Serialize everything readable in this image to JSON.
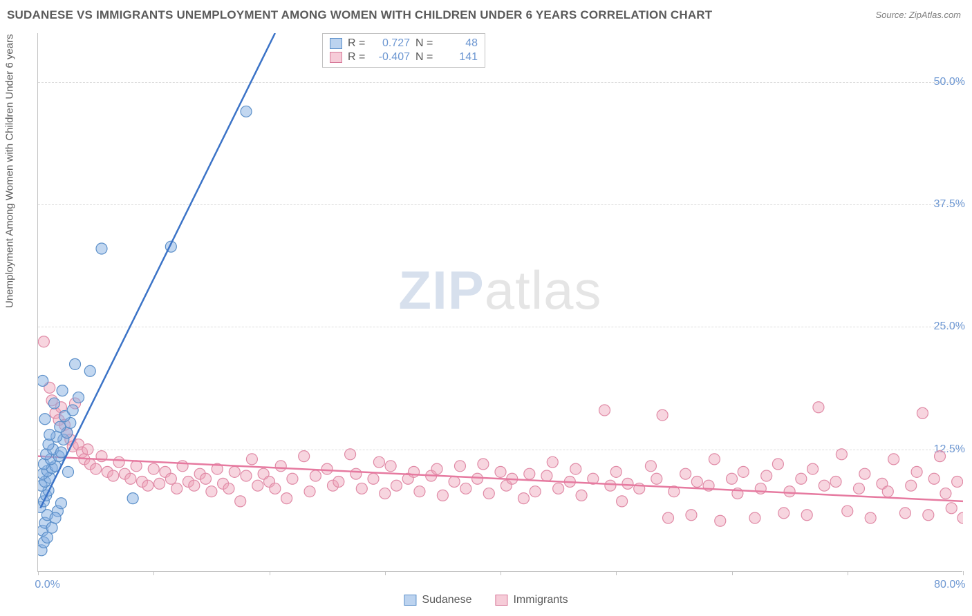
{
  "title": "SUDANESE VS IMMIGRANTS UNEMPLOYMENT AMONG WOMEN WITH CHILDREN UNDER 6 YEARS CORRELATION CHART",
  "source": "Source: ZipAtlas.com",
  "ylabel": "Unemployment Among Women with Children Under 6 years",
  "watermark_zip": "ZIP",
  "watermark_atlas": "atlas",
  "chart": {
    "type": "scatter",
    "background_color": "#ffffff",
    "grid_color": "#dcdcdc",
    "axis_color": "#c2c2c2",
    "text_color": "#5a5a5a",
    "tick_label_color": "#6d97d2",
    "title_fontsize": 17,
    "label_fontsize": 15,
    "tick_fontsize": 16,
    "xlim": [
      0,
      80
    ],
    "ylim": [
      0,
      55
    ],
    "yticks": [
      12.5,
      25.0,
      37.5,
      50.0
    ],
    "ytick_labels": [
      "12.5%",
      "25.0%",
      "37.5%",
      "50.0%"
    ],
    "xtick_spacing": 10,
    "xtick_labels_shown": {
      "0": "0.0%",
      "80": "80.0%"
    },
    "marker_radius": 8,
    "trend_line_width": 2.5
  },
  "legend_top": {
    "rows": [
      {
        "swatch": "blue",
        "r_label": "R =",
        "r_value": "0.727",
        "n_label": "N =",
        "n_value": "48"
      },
      {
        "swatch": "pink",
        "r_label": "R =",
        "r_value": "-0.407",
        "n_label": "N =",
        "n_value": "141"
      }
    ]
  },
  "legend_bottom": {
    "items": [
      {
        "swatch": "blue",
        "label": "Sudanese"
      },
      {
        "swatch": "pink",
        "label": "Immigrants"
      }
    ]
  },
  "series_blue": {
    "name": "Sudanese",
    "color_fill": "rgba(133,175,226,0.5)",
    "color_stroke": "#5b8fc9",
    "trend_color": "#3b73c7",
    "trend": {
      "x1": 0.2,
      "y1": 6.5,
      "x2": 20.5,
      "y2": 55
    },
    "points": [
      [
        0.3,
        2.2
      ],
      [
        0.5,
        3.0
      ],
      [
        0.4,
        4.2
      ],
      [
        0.6,
        5.0
      ],
      [
        0.8,
        5.8
      ],
      [
        0.2,
        6.6
      ],
      [
        0.5,
        7.2
      ],
      [
        0.7,
        7.8
      ],
      [
        0.9,
        8.3
      ],
      [
        0.3,
        8.8
      ],
      [
        0.6,
        9.2
      ],
      [
        1.0,
        9.6
      ],
      [
        0.4,
        10.0
      ],
      [
        0.8,
        10.3
      ],
      [
        1.2,
        10.6
      ],
      [
        0.5,
        11.0
      ],
      [
        1.5,
        10.8
      ],
      [
        1.1,
        11.5
      ],
      [
        0.7,
        12.0
      ],
      [
        1.8,
        11.8
      ],
      [
        1.3,
        12.5
      ],
      [
        2.0,
        12.2
      ],
      [
        0.9,
        13.0
      ],
      [
        2.2,
        13.5
      ],
      [
        1.6,
        13.8
      ],
      [
        2.5,
        14.2
      ],
      [
        1.9,
        14.8
      ],
      [
        2.8,
        15.2
      ],
      [
        0.6,
        15.6
      ],
      [
        2.3,
        15.9
      ],
      [
        3.0,
        16.5
      ],
      [
        1.4,
        17.2
      ],
      [
        3.5,
        17.8
      ],
      [
        2.1,
        18.5
      ],
      [
        0.4,
        19.5
      ],
      [
        4.5,
        20.5
      ],
      [
        3.2,
        21.2
      ],
      [
        1.0,
        14.0
      ],
      [
        2.6,
        10.2
      ],
      [
        5.5,
        33.0
      ],
      [
        11.5,
        33.2
      ],
      [
        8.2,
        7.5
      ],
      [
        18.0,
        47.0
      ],
      [
        1.2,
        4.5
      ],
      [
        1.7,
        6.2
      ],
      [
        0.8,
        3.5
      ],
      [
        1.5,
        5.5
      ],
      [
        2.0,
        7.0
      ]
    ]
  },
  "series_pink": {
    "name": "Immigrants",
    "color_fill": "rgba(238,162,184,0.45)",
    "color_stroke": "#e08aa6",
    "trend_color": "#e67aa0",
    "trend": {
      "x1": 0,
      "y1": 11.8,
      "x2": 80,
      "y2": 7.2
    },
    "points": [
      [
        0.5,
        23.5
      ],
      [
        1.0,
        18.8
      ],
      [
        1.2,
        17.5
      ],
      [
        1.5,
        16.2
      ],
      [
        1.8,
        15.5
      ],
      [
        2.0,
        16.8
      ],
      [
        2.3,
        15.0
      ],
      [
        2.5,
        14.2
      ],
      [
        2.8,
        13.5
      ],
      [
        3.0,
        12.8
      ],
      [
        3.2,
        17.2
      ],
      [
        3.5,
        13.0
      ],
      [
        3.8,
        12.2
      ],
      [
        4.0,
        11.5
      ],
      [
        4.3,
        12.5
      ],
      [
        4.5,
        11.0
      ],
      [
        5.0,
        10.5
      ],
      [
        5.5,
        11.8
      ],
      [
        6.0,
        10.2
      ],
      [
        6.5,
        9.8
      ],
      [
        7.0,
        11.2
      ],
      [
        7.5,
        10.0
      ],
      [
        8.0,
        9.5
      ],
      [
        8.5,
        10.8
      ],
      [
        9.0,
        9.2
      ],
      [
        9.5,
        8.8
      ],
      [
        10.0,
        10.5
      ],
      [
        10.5,
        9.0
      ],
      [
        11.0,
        10.2
      ],
      [
        11.5,
        9.5
      ],
      [
        12.0,
        8.5
      ],
      [
        12.5,
        10.8
      ],
      [
        13.0,
        9.2
      ],
      [
        13.5,
        8.8
      ],
      [
        14.0,
        10.0
      ],
      [
        14.5,
        9.5
      ],
      [
        15.0,
        8.2
      ],
      [
        15.5,
        10.5
      ],
      [
        16.0,
        9.0
      ],
      [
        16.5,
        8.5
      ],
      [
        17.0,
        10.2
      ],
      [
        17.5,
        7.2
      ],
      [
        18.0,
        9.8
      ],
      [
        18.5,
        11.5
      ],
      [
        19.0,
        8.8
      ],
      [
        19.5,
        10.0
      ],
      [
        20.0,
        9.2
      ],
      [
        20.5,
        8.5
      ],
      [
        21.0,
        10.8
      ],
      [
        21.5,
        7.5
      ],
      [
        22.0,
        9.5
      ],
      [
        23.0,
        11.8
      ],
      [
        23.5,
        8.2
      ],
      [
        24.0,
        9.8
      ],
      [
        25.0,
        10.5
      ],
      [
        25.5,
        8.8
      ],
      [
        26.0,
        9.2
      ],
      [
        27.0,
        12.0
      ],
      [
        27.5,
        10.0
      ],
      [
        28.0,
        8.5
      ],
      [
        29.0,
        9.5
      ],
      [
        29.5,
        11.2
      ],
      [
        30.0,
        8.0
      ],
      [
        30.5,
        10.8
      ],
      [
        31.0,
        8.8
      ],
      [
        32.0,
        9.5
      ],
      [
        32.5,
        10.2
      ],
      [
        33.0,
        8.2
      ],
      [
        34.0,
        9.8
      ],
      [
        34.5,
        10.5
      ],
      [
        35.0,
        7.8
      ],
      [
        36.0,
        9.2
      ],
      [
        36.5,
        10.8
      ],
      [
        37.0,
        8.5
      ],
      [
        38.0,
        9.5
      ],
      [
        38.5,
        11.0
      ],
      [
        39.0,
        8.0
      ],
      [
        40.0,
        10.2
      ],
      [
        40.5,
        8.8
      ],
      [
        41.0,
        9.5
      ],
      [
        42.0,
        7.5
      ],
      [
        42.5,
        10.0
      ],
      [
        43.0,
        8.2
      ],
      [
        44.0,
        9.8
      ],
      [
        44.5,
        11.2
      ],
      [
        45.0,
        8.5
      ],
      [
        46.0,
        9.2
      ],
      [
        46.5,
        10.5
      ],
      [
        47.0,
        7.8
      ],
      [
        48.0,
        9.5
      ],
      [
        49.0,
        16.5
      ],
      [
        49.5,
        8.8
      ],
      [
        50.0,
        10.2
      ],
      [
        50.5,
        7.2
      ],
      [
        51.0,
        9.0
      ],
      [
        52.0,
        8.5
      ],
      [
        53.0,
        10.8
      ],
      [
        53.5,
        9.5
      ],
      [
        54.0,
        16.0
      ],
      [
        54.5,
        5.5
      ],
      [
        55.0,
        8.2
      ],
      [
        56.0,
        10.0
      ],
      [
        56.5,
        5.8
      ],
      [
        57.0,
        9.2
      ],
      [
        58.0,
        8.8
      ],
      [
        58.5,
        11.5
      ],
      [
        59.0,
        5.2
      ],
      [
        60.0,
        9.5
      ],
      [
        60.5,
        8.0
      ],
      [
        61.0,
        10.2
      ],
      [
        62.0,
        5.5
      ],
      [
        62.5,
        8.5
      ],
      [
        63.0,
        9.8
      ],
      [
        64.0,
        11.0
      ],
      [
        64.5,
        6.0
      ],
      [
        65.0,
        8.2
      ],
      [
        66.0,
        9.5
      ],
      [
        66.5,
        5.8
      ],
      [
        67.0,
        10.5
      ],
      [
        67.5,
        16.8
      ],
      [
        68.0,
        8.8
      ],
      [
        69.0,
        9.2
      ],
      [
        69.5,
        12.0
      ],
      [
        70.0,
        6.2
      ],
      [
        71.0,
        8.5
      ],
      [
        71.5,
        10.0
      ],
      [
        72.0,
        5.5
      ],
      [
        73.0,
        9.0
      ],
      [
        73.5,
        8.2
      ],
      [
        74.0,
        11.5
      ],
      [
        75.0,
        6.0
      ],
      [
        75.5,
        8.8
      ],
      [
        76.0,
        10.2
      ],
      [
        76.5,
        16.2
      ],
      [
        77.0,
        5.8
      ],
      [
        77.5,
        9.5
      ],
      [
        78.0,
        11.8
      ],
      [
        78.5,
        8.0
      ],
      [
        79.0,
        6.5
      ],
      [
        79.5,
        9.2
      ],
      [
        80.0,
        5.5
      ]
    ]
  }
}
